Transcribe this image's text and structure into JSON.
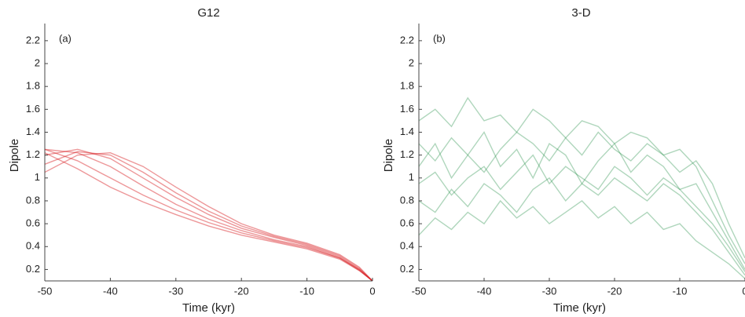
{
  "chart_data": [
    {
      "type": "line",
      "title": "G12",
      "label": "(a)",
      "x_label": "Time (kyr)",
      "y_label": "Dipole",
      "x": [
        -50,
        -45,
        -40,
        -35,
        -30,
        -25,
        -20,
        -15,
        -10,
        -5,
        -2,
        0
      ],
      "series": [
        {
          "color": "#d7191c",
          "values": [
            1.05,
            1.2,
            1.22,
            1.1,
            0.92,
            0.75,
            0.6,
            0.5,
            0.43,
            0.33,
            0.22,
            0.1
          ]
        },
        {
          "color": "#d7191c",
          "values": [
            1.12,
            1.23,
            1.2,
            1.05,
            0.87,
            0.71,
            0.58,
            0.49,
            0.42,
            0.32,
            0.21,
            0.1
          ]
        },
        {
          "color": "#d7191c",
          "values": [
            1.2,
            1.25,
            1.17,
            1.0,
            0.83,
            0.68,
            0.56,
            0.48,
            0.41,
            0.31,
            0.2,
            0.1
          ]
        },
        {
          "color": "#d7191c",
          "values": [
            1.25,
            1.22,
            1.1,
            0.93,
            0.77,
            0.64,
            0.54,
            0.46,
            0.4,
            0.3,
            0.2,
            0.1
          ]
        },
        {
          "color": "#d7191c",
          "values": [
            1.25,
            1.15,
            1.0,
            0.85,
            0.72,
            0.61,
            0.52,
            0.45,
            0.39,
            0.3,
            0.19,
            0.1
          ]
        },
        {
          "color": "#d7191c",
          "values": [
            1.22,
            1.08,
            0.92,
            0.79,
            0.68,
            0.58,
            0.5,
            0.44,
            0.38,
            0.29,
            0.19,
            0.1
          ]
        }
      ],
      "xlim": [
        -50,
        0
      ],
      "ylim": [
        0.1,
        2.35
      ],
      "xticks": [
        -50,
        -40,
        -30,
        -20,
        -10,
        0
      ],
      "yticks": [
        0.2,
        0.4,
        0.6,
        0.8,
        1,
        1.2,
        1.4,
        1.6,
        1.8,
        2,
        2.2
      ]
    },
    {
      "type": "line",
      "title": "3-D",
      "label": "(b)",
      "x_label": "Time (kyr)",
      "y_label": "Dipole",
      "x": [
        -50,
        -47.5,
        -45,
        -42.5,
        -40,
        -37.5,
        -35,
        -32.5,
        -30,
        -27.5,
        -25,
        -22.5,
        -20,
        -17.5,
        -15,
        -12.5,
        -10,
        -7.5,
        -5,
        -2.5,
        0
      ],
      "series": [
        {
          "color": "#1a8a3e",
          "values": [
            1.1,
            1.3,
            1.0,
            1.2,
            1.4,
            1.1,
            1.25,
            1.0,
            1.3,
            1.2,
            0.95,
            1.15,
            1.3,
            1.05,
            1.2,
            1.1,
            0.9,
            0.95,
            0.7,
            0.45,
            0.2
          ]
        },
        {
          "color": "#1a8a3e",
          "values": [
            0.8,
            0.7,
            0.9,
            0.75,
            0.95,
            0.85,
            0.7,
            0.9,
            1.0,
            0.8,
            0.95,
            0.85,
            1.0,
            0.9,
            0.8,
            0.95,
            0.85,
            0.7,
            0.55,
            0.35,
            0.15
          ]
        },
        {
          "color": "#1a8a3e",
          "values": [
            1.5,
            1.6,
            1.45,
            1.7,
            1.5,
            1.55,
            1.4,
            1.6,
            1.5,
            1.35,
            1.5,
            1.45,
            1.3,
            1.4,
            1.35,
            1.2,
            1.25,
            1.1,
            0.8,
            0.5,
            0.25
          ]
        },
        {
          "color": "#1a8a3e",
          "values": [
            0.5,
            0.65,
            0.55,
            0.7,
            0.6,
            0.8,
            0.65,
            0.75,
            0.6,
            0.7,
            0.8,
            0.65,
            0.75,
            0.6,
            0.7,
            0.55,
            0.6,
            0.45,
            0.35,
            0.25,
            0.12
          ]
        },
        {
          "color": "#1a8a3e",
          "values": [
            1.3,
            1.15,
            1.35,
            1.2,
            1.05,
            1.25,
            1.4,
            1.3,
            1.15,
            1.35,
            1.2,
            1.4,
            1.25,
            1.15,
            1.3,
            1.2,
            1.05,
            1.15,
            0.95,
            0.6,
            0.3
          ]
        },
        {
          "color": "#1a8a3e",
          "values": [
            0.95,
            1.05,
            0.85,
            1.0,
            1.1,
            0.9,
            1.05,
            1.2,
            0.95,
            1.1,
            1.0,
            0.9,
            1.1,
            1.0,
            0.85,
            1.0,
            0.9,
            0.75,
            0.6,
            0.4,
            0.18
          ]
        }
      ],
      "xlim": [
        -50,
        0
      ],
      "ylim": [
        0.1,
        2.35
      ],
      "xticks": [
        -50,
        -40,
        -30,
        -20,
        -10,
        0
      ],
      "yticks": [
        0.2,
        0.4,
        0.6,
        0.8,
        1,
        1.2,
        1.4,
        1.6,
        1.8,
        2,
        2.2
      ]
    }
  ]
}
